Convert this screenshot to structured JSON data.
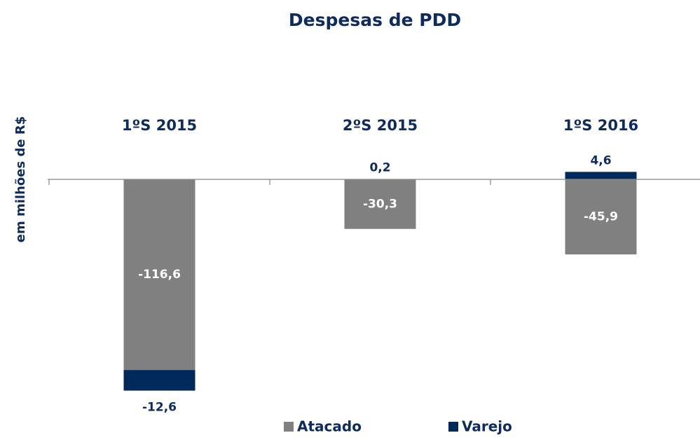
{
  "chart_data": {
    "type": "bar",
    "stacked": true,
    "title": "Despesas de PDD",
    "y_label": "em  milhões de R$",
    "categories": [
      "1ºS 2015",
      "2ºS 2015",
      "1ºS 2016"
    ],
    "series": [
      {
        "name": "Atacado",
        "color": "#808080",
        "values": [
          -116.6,
          -30.3,
          -45.9
        ],
        "value_labels": [
          "-116,6",
          "-30,3",
          "-45,9"
        ]
      },
      {
        "name": "Varejo",
        "color": "#002a5c",
        "values": [
          -12.6,
          0.2,
          4.6
        ],
        "value_labels": [
          "-12,6",
          "0,2",
          "4,6"
        ]
      }
    ],
    "ylim": [
      -140,
      10
    ],
    "legend": "bottom"
  }
}
